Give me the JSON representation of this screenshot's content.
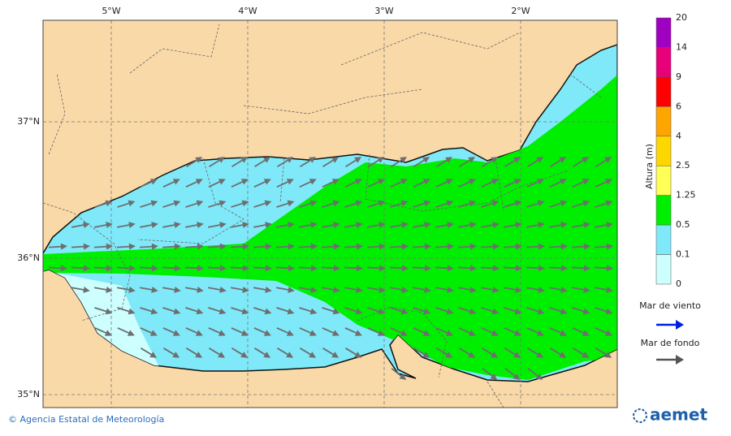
{
  "axes": {
    "longitude_labels": [
      "5°W",
      "4°W",
      "3°W",
      "2°W"
    ],
    "latitude_labels": [
      "37°N",
      "36°N",
      "35°N"
    ]
  },
  "legend": {
    "title": "Altura (m)",
    "levels": [
      "20",
      "14",
      "9",
      "6",
      "4",
      "2.5",
      "1.25",
      "0.5",
      "0.1",
      "0"
    ],
    "wind_sea": "Mar de viento",
    "swell": "Mar de fondo"
  },
  "footer": {
    "copyright": "© Agencia Estatal de Meteorología",
    "logo": "aemet"
  }
}
